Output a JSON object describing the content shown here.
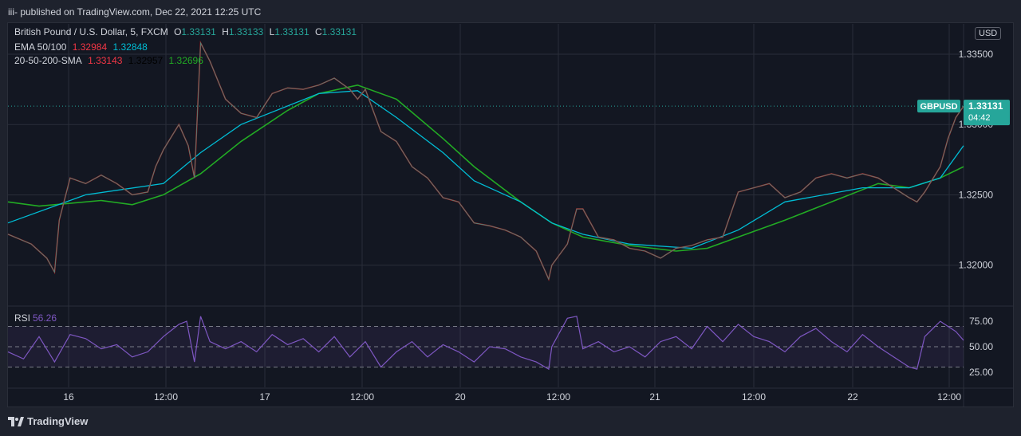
{
  "header": {
    "published": "iii- published on TradingView.com, Dec 22, 2021 12:25 UTC"
  },
  "footer": {
    "brand": "TradingView",
    "logo_icon": "tradingview-logo-icon"
  },
  "chart_data": {
    "type": "line",
    "symbol": "British Pound / U.S. Dollar, 5, FXCM",
    "ohlc": {
      "o_label": "O",
      "o": "1.33131",
      "h_label": "H",
      "h": "1.33133",
      "l_label": "L",
      "l": "1.33131",
      "c_label": "C",
      "c": "1.33131"
    },
    "currency": "USD",
    "indicators": [
      {
        "name": "EMA 50/100",
        "values": [
          "1.32984",
          "1.32848"
        ],
        "colors": [
          "#f23645",
          "#00bcd4"
        ]
      },
      {
        "name": "20-50-200-SMA",
        "values": [
          "1.33143",
          "1.32957",
          "1.32696"
        ],
        "colors": [
          "#f23645",
          "#000000",
          "#22ab24"
        ]
      }
    ],
    "last_price_label": {
      "symbol": "GBPUSD",
      "price": "1.33131",
      "countdown": "04:42",
      "color": "#26a69a"
    },
    "price_axis": {
      "ticks": [
        "1.33500",
        "1.33000",
        "1.32500",
        "1.32000"
      ],
      "tick_values": [
        1.335,
        1.33,
        1.325,
        1.32
      ],
      "range": [
        1.31715,
        1.33715
      ]
    },
    "time_axis": {
      "ticks": [
        "16",
        "12:00",
        "17",
        "12:00",
        "20",
        "12:00",
        "21",
        "12:00",
        "22",
        "12:00"
      ]
    },
    "price_series": [
      [
        0,
        1.3222
      ],
      [
        1.5,
        1.3215
      ],
      [
        2.5,
        1.3205
      ],
      [
        3,
        1.3195
      ],
      [
        3.3,
        1.3232
      ],
      [
        4,
        1.3262
      ],
      [
        5,
        1.3258
      ],
      [
        6,
        1.3264
      ],
      [
        7,
        1.3258
      ],
      [
        8,
        1.325
      ],
      [
        9,
        1.3252
      ],
      [
        9.5,
        1.327
      ],
      [
        10,
        1.3282
      ],
      [
        11,
        1.33
      ],
      [
        11.6,
        1.3285
      ],
      [
        12,
        1.3262
      ],
      [
        12.4,
        1.3358
      ],
      [
        13,
        1.3345
      ],
      [
        14,
        1.3318
      ],
      [
        15,
        1.3308
      ],
      [
        16,
        1.3305
      ],
      [
        17,
        1.3322
      ],
      [
        18,
        1.3326
      ],
      [
        19,
        1.3325
      ],
      [
        20,
        1.3328
      ],
      [
        21,
        1.3333
      ],
      [
        22,
        1.3325
      ],
      [
        22.5,
        1.3318
      ],
      [
        23,
        1.3325
      ],
      [
        24,
        1.3295
      ],
      [
        25,
        1.3288
      ],
      [
        26,
        1.327
      ],
      [
        27,
        1.3262
      ],
      [
        28,
        1.3248
      ],
      [
        29,
        1.3245
      ],
      [
        30,
        1.323
      ],
      [
        31,
        1.3228
      ],
      [
        32,
        1.3225
      ],
      [
        33,
        1.322
      ],
      [
        34,
        1.321
      ],
      [
        34.8,
        1.319
      ],
      [
        35,
        1.32
      ],
      [
        36,
        1.3215
      ],
      [
        36.6,
        1.324
      ],
      [
        37,
        1.324
      ],
      [
        38,
        1.322
      ],
      [
        39,
        1.3218
      ],
      [
        40,
        1.3212
      ],
      [
        41,
        1.321
      ],
      [
        42,
        1.3205
      ],
      [
        43,
        1.3212
      ],
      [
        44,
        1.3214
      ],
      [
        45,
        1.3218
      ],
      [
        46,
        1.322
      ],
      [
        47,
        1.3252
      ],
      [
        48,
        1.3255
      ],
      [
        49,
        1.3258
      ],
      [
        50,
        1.3248
      ],
      [
        51,
        1.3252
      ],
      [
        52,
        1.3262
      ],
      [
        53,
        1.3265
      ],
      [
        54,
        1.3262
      ],
      [
        55,
        1.3265
      ],
      [
        56,
        1.3262
      ],
      [
        57,
        1.3255
      ],
      [
        58,
        1.3248
      ],
      [
        58.5,
        1.3245
      ],
      [
        59,
        1.3252
      ],
      [
        60,
        1.327
      ],
      [
        60.5,
        1.329
      ],
      [
        61,
        1.3305
      ],
      [
        61.5,
        1.3313
      ]
    ],
    "ema_50_series": [
      [
        0,
        1.323
      ],
      [
        5,
        1.325
      ],
      [
        10,
        1.3258
      ],
      [
        12.4,
        1.328
      ],
      [
        15,
        1.33
      ],
      [
        20,
        1.3322
      ],
      [
        22.5,
        1.3324
      ],
      [
        25,
        1.3305
      ],
      [
        28,
        1.328
      ],
      [
        30,
        1.326
      ],
      [
        33,
        1.3245
      ],
      [
        35,
        1.323
      ],
      [
        37,
        1.3222
      ],
      [
        40,
        1.3215
      ],
      [
        44,
        1.3212
      ],
      [
        47,
        1.3225
      ],
      [
        50,
        1.3245
      ],
      [
        55,
        1.3255
      ],
      [
        58,
        1.3255
      ],
      [
        60,
        1.3262
      ],
      [
        61.5,
        1.3285
      ]
    ],
    "sma_200_series": [
      [
        0,
        1.3245
      ],
      [
        2,
        1.3242
      ],
      [
        6,
        1.3246
      ],
      [
        8,
        1.3243
      ],
      [
        10,
        1.325
      ],
      [
        12.4,
        1.3265
      ],
      [
        15,
        1.3288
      ],
      [
        18,
        1.331
      ],
      [
        20,
        1.3322
      ],
      [
        22.5,
        1.3328
      ],
      [
        25,
        1.3318
      ],
      [
        28,
        1.329
      ],
      [
        30,
        1.327
      ],
      [
        33,
        1.3245
      ],
      [
        35,
        1.323
      ],
      [
        37,
        1.322
      ],
      [
        40,
        1.3214
      ],
      [
        43,
        1.321
      ],
      [
        45,
        1.3212
      ],
      [
        47,
        1.322
      ],
      [
        50,
        1.3232
      ],
      [
        53,
        1.3245
      ],
      [
        56,
        1.3258
      ],
      [
        58,
        1.3255
      ],
      [
        60,
        1.3262
      ],
      [
        61.5,
        1.327
      ]
    ],
    "rsi": {
      "label": "RSI",
      "value": "56.26",
      "ticks": [
        "75.00",
        "50.00",
        "25.00"
      ],
      "tick_values": [
        75,
        50,
        25
      ],
      "band": [
        30,
        70
      ],
      "range": [
        10,
        90
      ],
      "series": [
        [
          0,
          45
        ],
        [
          1,
          38
        ],
        [
          2,
          60
        ],
        [
          3,
          35
        ],
        [
          4,
          62
        ],
        [
          5,
          58
        ],
        [
          6,
          48
        ],
        [
          7,
          52
        ],
        [
          8,
          40
        ],
        [
          9,
          45
        ],
        [
          10,
          60
        ],
        [
          11,
          72
        ],
        [
          11.5,
          75
        ],
        [
          12,
          35
        ],
        [
          12.4,
          80
        ],
        [
          13,
          55
        ],
        [
          14,
          48
        ],
        [
          15,
          55
        ],
        [
          16,
          45
        ],
        [
          17,
          62
        ],
        [
          18,
          52
        ],
        [
          19,
          58
        ],
        [
          20,
          45
        ],
        [
          21,
          60
        ],
        [
          22,
          40
        ],
        [
          23,
          55
        ],
        [
          24,
          30
        ],
        [
          25,
          45
        ],
        [
          26,
          55
        ],
        [
          27,
          40
        ],
        [
          28,
          52
        ],
        [
          29,
          45
        ],
        [
          30,
          35
        ],
        [
          31,
          50
        ],
        [
          32,
          48
        ],
        [
          33,
          40
        ],
        [
          34,
          35
        ],
        [
          34.8,
          28
        ],
        [
          35,
          50
        ],
        [
          36,
          78
        ],
        [
          36.6,
          80
        ],
        [
          37,
          48
        ],
        [
          38,
          55
        ],
        [
          39,
          45
        ],
        [
          40,
          50
        ],
        [
          41,
          40
        ],
        [
          42,
          55
        ],
        [
          43,
          60
        ],
        [
          44,
          48
        ],
        [
          45,
          70
        ],
        [
          46,
          55
        ],
        [
          47,
          72
        ],
        [
          48,
          60
        ],
        [
          49,
          55
        ],
        [
          50,
          45
        ],
        [
          51,
          60
        ],
        [
          52,
          68
        ],
        [
          53,
          55
        ],
        [
          54,
          45
        ],
        [
          55,
          62
        ],
        [
          56,
          50
        ],
        [
          57,
          40
        ],
        [
          58,
          30
        ],
        [
          58.5,
          28
        ],
        [
          59,
          60
        ],
        [
          60,
          75
        ],
        [
          60.5,
          70
        ],
        [
          61,
          65
        ],
        [
          61.5,
          56.26
        ]
      ]
    }
  }
}
